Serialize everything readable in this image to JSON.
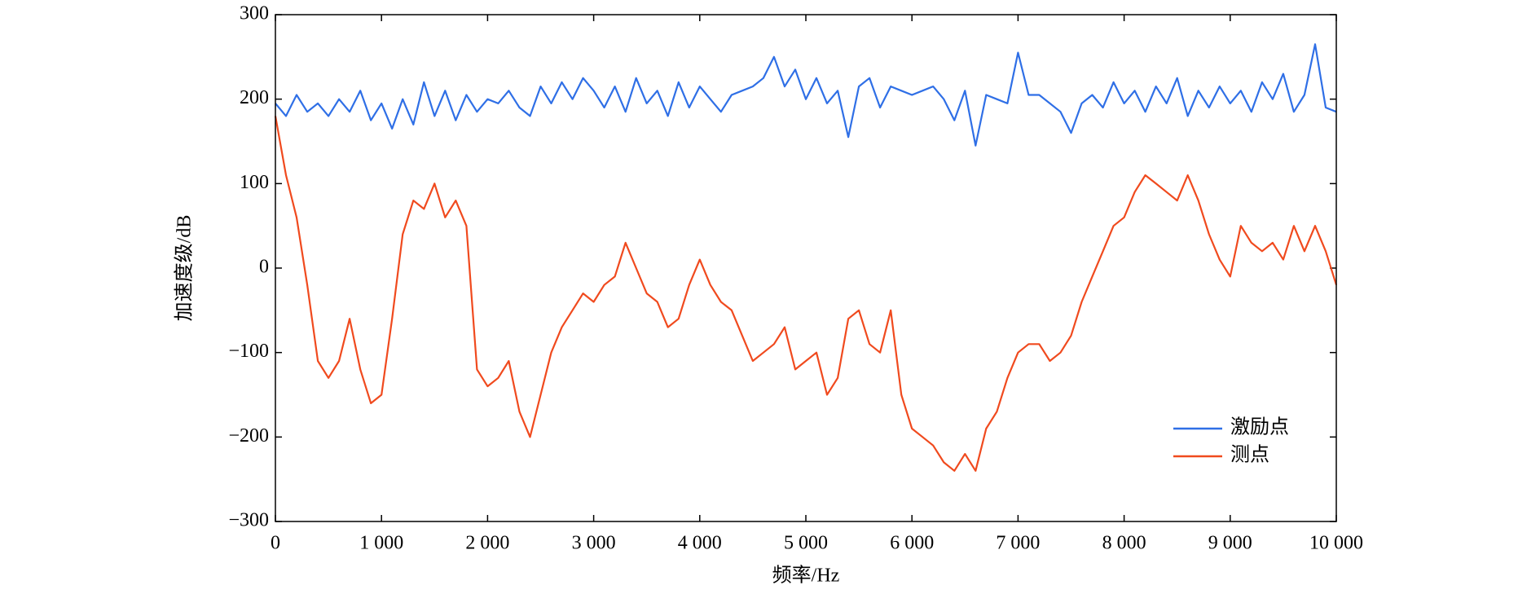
{
  "chart_data": {
    "type": "line",
    "xlabel": "频率/Hz",
    "ylabel": "加速度级/dB",
    "x": [
      0,
      100,
      200,
      300,
      400,
      500,
      600,
      700,
      800,
      900,
      1000,
      1100,
      1200,
      1300,
      1400,
      1500,
      1600,
      1700,
      1800,
      1900,
      2000,
      2100,
      2200,
      2300,
      2400,
      2500,
      2600,
      2700,
      2800,
      2900,
      3000,
      3100,
      3200,
      3300,
      3400,
      3500,
      3600,
      3700,
      3800,
      3900,
      4000,
      4100,
      4200,
      4300,
      4400,
      4500,
      4600,
      4700,
      4800,
      4900,
      5000,
      5100,
      5200,
      5300,
      5400,
      5500,
      5600,
      5700,
      5800,
      5900,
      6000,
      6100,
      6200,
      6300,
      6400,
      6500,
      6600,
      6700,
      6800,
      6900,
      7000,
      7100,
      7200,
      7300,
      7400,
      7500,
      7600,
      7700,
      7800,
      7900,
      8000,
      8100,
      8200,
      8300,
      8400,
      8500,
      8600,
      8700,
      8800,
      8900,
      9000,
      9100,
      9200,
      9300,
      9400,
      9500,
      9600,
      9700,
      9800,
      9900,
      10000
    ],
    "series": [
      {
        "name": "激励点",
        "color": "#2f6fe6",
        "values": [
          195,
          180,
          205,
          185,
          195,
          180,
          200,
          185,
          210,
          175,
          195,
          165,
          200,
          170,
          220,
          180,
          210,
          175,
          205,
          185,
          200,
          195,
          210,
          190,
          180,
          215,
          195,
          220,
          200,
          225,
          210,
          190,
          215,
          185,
          225,
          195,
          210,
          180,
          220,
          190,
          215,
          200,
          185,
          205,
          210,
          215,
          225,
          250,
          215,
          235,
          200,
          225,
          195,
          210,
          155,
          215,
          225,
          190,
          215,
          210,
          205,
          210,
          215,
          200,
          175,
          210,
          145,
          205,
          200,
          195,
          255,
          205,
          205,
          195,
          185,
          160,
          195,
          205,
          190,
          220,
          195,
          210,
          185,
          215,
          195,
          225,
          180,
          210,
          190,
          215,
          195,
          210,
          185,
          220,
          200,
          230,
          185,
          205,
          265,
          190,
          185
        ]
      },
      {
        "name": "测点",
        "color": "#f04a1e",
        "values": [
          180,
          110,
          60,
          -20,
          -110,
          -130,
          -110,
          -60,
          -120,
          -160,
          -150,
          -60,
          40,
          80,
          70,
          100,
          60,
          80,
          50,
          -120,
          -140,
          -130,
          -110,
          -170,
          -200,
          -150,
          -100,
          -70,
          -50,
          -30,
          -40,
          -20,
          -10,
          30,
          0,
          -30,
          -40,
          -70,
          -60,
          -20,
          10,
          -20,
          -40,
          -50,
          -80,
          -110,
          -100,
          -90,
          -70,
          -120,
          -110,
          -100,
          -150,
          -130,
          -60,
          -50,
          -90,
          -100,
          -50,
          -150,
          -190,
          -200,
          -210,
          -230,
          -240,
          -220,
          -240,
          -190,
          -170,
          -130,
          -100,
          -90,
          -90,
          -110,
          -100,
          -80,
          -40,
          -10,
          20,
          50,
          60,
          90,
          110,
          100,
          90,
          80,
          110,
          80,
          40,
          10,
          -10,
          50,
          30,
          20,
          30,
          10,
          50,
          20,
          50,
          20,
          -20
        ]
      }
    ],
    "xlim": [
      0,
      10000
    ],
    "xticks": [
      0,
      {
        "value": 1000,
        "label": "1 000"
      },
      {
        "value": 2000,
        "label": "2 000"
      },
      {
        "value": 3000,
        "label": "3 000"
      },
      {
        "value": 4000,
        "label": "4 000"
      },
      {
        "value": 5000,
        "label": "5 000"
      },
      {
        "value": 6000,
        "label": "6 000"
      },
      {
        "value": 7000,
        "label": "7 000"
      },
      {
        "value": 8000,
        "label": "8 000"
      },
      {
        "value": 9000,
        "label": "9 000"
      },
      {
        "value": 10000,
        "label": "10 000"
      }
    ],
    "ylim": [
      -300,
      300
    ],
    "yticks": [
      {
        "value": -300,
        "label": "−300"
      },
      {
        "value": -200,
        "label": "−200"
      },
      {
        "value": -100,
        "label": "−100"
      },
      0,
      100,
      200,
      300
    ],
    "legend": "lower right",
    "grid": false
  }
}
